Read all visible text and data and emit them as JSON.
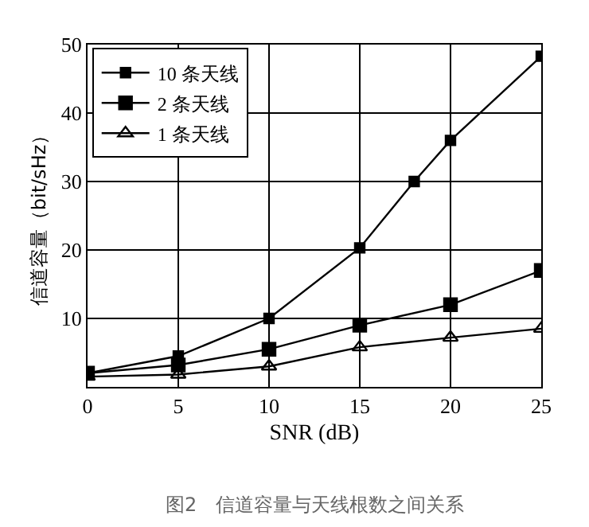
{
  "chart_data": {
    "type": "line",
    "xlabel": "SNR (dB)",
    "ylabel": "信道容量（bit/sHz）",
    "annotations": [
      "图2　信道容量与天线根数之间关系"
    ],
    "xlim": [
      0,
      25
    ],
    "xticks": [
      0,
      5,
      10,
      15,
      20,
      25
    ],
    "ylim": [
      0,
      50
    ],
    "yticks": [
      10,
      20,
      30,
      40,
      50
    ],
    "grid": true,
    "legend": "top left",
    "line_style": "solid",
    "series": [
      {
        "name": "10 条天线",
        "color": "#000000",
        "marker": "square",
        "x": [
          0,
          5,
          10,
          15,
          18,
          20,
          25
        ],
        "values": [
          2,
          4.5,
          10,
          20.3,
          30,
          36,
          48.3
        ]
      },
      {
        "name": "2 条天线",
        "color": "#000000",
        "marker": "square",
        "x": [
          0,
          5,
          10,
          15,
          20,
          25
        ],
        "values": [
          2,
          3.2,
          5.5,
          9,
          12,
          17
        ]
      },
      {
        "name": "1 条天线",
        "color": "#000000",
        "marker": "triangle",
        "x": [
          0,
          5,
          10,
          15,
          20,
          25
        ],
        "values": [
          1.5,
          1.8,
          3,
          5.8,
          7.2,
          8.5
        ]
      }
    ]
  }
}
